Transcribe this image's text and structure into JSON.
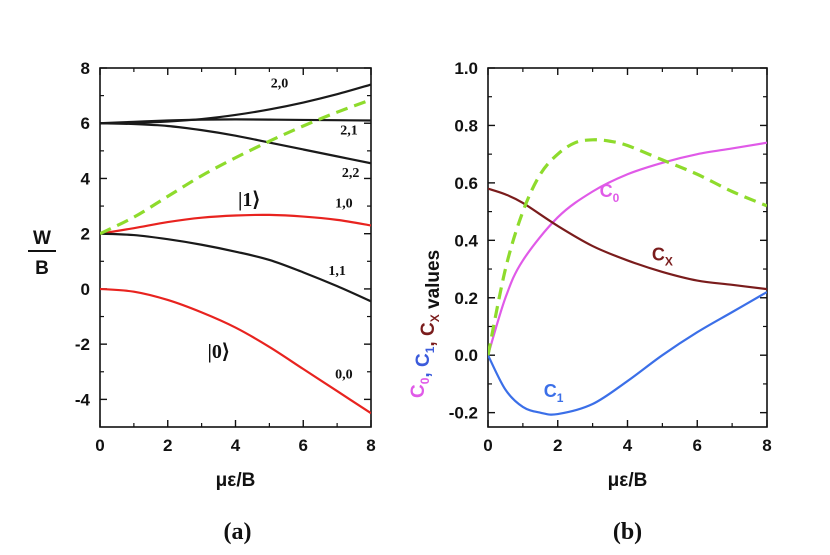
{
  "chart_data": [
    {
      "type": "line",
      "panel_label": "(a)",
      "xlabel": "με/B",
      "ylabel_num": "W",
      "ylabel_den": "B",
      "xlim": [
        0,
        8
      ],
      "ylim": [
        -5,
        8
      ],
      "x_ticks": [
        "0",
        "2",
        "4",
        "6",
        "8"
      ],
      "y_ticks": [
        "8",
        "6",
        "4",
        "2",
        "0",
        "-2",
        "-4"
      ],
      "colors": {
        "black": "#1a1a1a",
        "red": "#e8231f",
        "green": "#8edb2c"
      },
      "annotations": {
        "ket1": "|1⟩",
        "ket0": "|0⟩"
      },
      "series": [
        {
          "label": "2,0",
          "color": "black",
          "dash": false,
          "x": [
            0,
            1,
            2,
            3,
            4,
            5,
            6,
            7,
            8
          ],
          "y": [
            6.0,
            6.01,
            6.06,
            6.15,
            6.3,
            6.5,
            6.75,
            7.05,
            7.4
          ]
        },
        {
          "label": "2,1",
          "color": "black",
          "dash": false,
          "x": [
            0,
            1,
            2,
            3,
            4,
            5,
            6,
            7,
            8
          ],
          "y": [
            6.0,
            6.05,
            6.1,
            6.13,
            6.14,
            6.13,
            6.12,
            6.11,
            6.1
          ]
        },
        {
          "label": "2,2",
          "color": "black",
          "dash": false,
          "x": [
            0,
            1,
            2,
            3,
            4,
            5,
            6,
            7,
            8
          ],
          "y": [
            6.0,
            5.97,
            5.9,
            5.75,
            5.55,
            5.3,
            5.05,
            4.8,
            4.55
          ]
        },
        {
          "label": "1,0",
          "color": "red",
          "dash": false,
          "x": [
            0,
            1,
            2,
            3,
            4,
            5,
            6,
            7,
            8
          ],
          "y": [
            2.0,
            2.2,
            2.42,
            2.58,
            2.66,
            2.68,
            2.62,
            2.5,
            2.3
          ]
        },
        {
          "label": "1,1",
          "color": "black",
          "dash": false,
          "x": [
            0,
            1,
            2,
            3,
            4,
            5,
            6,
            7,
            8
          ],
          "y": [
            2.0,
            1.95,
            1.8,
            1.6,
            1.35,
            1.05,
            0.6,
            0.1,
            -0.45
          ]
        },
        {
          "label": "0,0",
          "color": "red",
          "dash": false,
          "x": [
            0,
            1,
            2,
            3,
            4,
            5,
            6,
            7,
            8
          ],
          "y": [
            0.0,
            -0.1,
            -0.4,
            -0.85,
            -1.4,
            -2.1,
            -2.9,
            -3.7,
            -4.5
          ]
        },
        {
          "label": "",
          "color": "green",
          "dash": true,
          "x": [
            0,
            1,
            2,
            3,
            4,
            5,
            6,
            7,
            8
          ],
          "y": [
            2.0,
            2.6,
            3.35,
            4.1,
            4.75,
            5.35,
            5.9,
            6.4,
            6.85
          ]
        }
      ]
    },
    {
      "type": "line",
      "panel_label": "(b)",
      "xlabel": "με/B",
      "ylabel_parts": [
        {
          "text": "C",
          "sub": "0",
          "color": "#e05ae8"
        },
        {
          "text": ", ",
          "sub": "",
          "color": "#3b5bdb"
        },
        {
          "text": "C",
          "sub": "1",
          "color": "#3b5bdb"
        },
        {
          "text": ", ",
          "sub": "",
          "color": "#7a1c1c"
        },
        {
          "text": "C",
          "sub": "X",
          "color": "#7a1c1c"
        },
        {
          "text": " values",
          "sub": "",
          "color": "#111111"
        }
      ],
      "xlim": [
        0,
        8
      ],
      "ylim": [
        -0.25,
        1.0
      ],
      "x_ticks": [
        "0",
        "2",
        "4",
        "6",
        "8"
      ],
      "y_ticks": [
        "1.0",
        "0.8",
        "0.6",
        "0.4",
        "0.2",
        "0.0",
        "-0.2"
      ],
      "colors": {
        "C0": "#e05ae8",
        "C1": "#3b6fe8",
        "CX": "#7a1c1c",
        "dashed": "#8edb2c"
      },
      "series": [
        {
          "name": "C",
          "sub": "0",
          "color": "#e05ae8",
          "dash": false,
          "x": [
            0,
            0.5,
            1,
            2,
            3,
            4,
            5,
            6,
            7,
            8
          ],
          "y": [
            0.0,
            0.2,
            0.33,
            0.48,
            0.57,
            0.63,
            0.67,
            0.7,
            0.72,
            0.74
          ]
        },
        {
          "name": "C",
          "sub": "1",
          "color": "#3b6fe8",
          "dash": false,
          "x": [
            0,
            0.5,
            1,
            1.5,
            2,
            3,
            4,
            5,
            6,
            7,
            8
          ],
          "y": [
            0.0,
            -0.12,
            -0.18,
            -0.2,
            -0.205,
            -0.17,
            -0.09,
            0.0,
            0.08,
            0.15,
            0.22
          ]
        },
        {
          "name": "C",
          "sub": "X",
          "color": "#7a1c1c",
          "dash": false,
          "x": [
            0,
            0.5,
            1,
            2,
            3,
            4,
            5,
            6,
            7,
            8
          ],
          "y": [
            0.58,
            0.56,
            0.53,
            0.45,
            0.38,
            0.33,
            0.29,
            0.26,
            0.245,
            0.23
          ]
        },
        {
          "name": "",
          "sub": "",
          "color": "#8edb2c",
          "dash": true,
          "x": [
            0,
            0.5,
            1,
            1.5,
            2,
            2.5,
            3,
            3.5,
            4,
            5,
            6,
            7,
            8
          ],
          "y": [
            0.0,
            0.3,
            0.5,
            0.63,
            0.7,
            0.74,
            0.75,
            0.745,
            0.73,
            0.68,
            0.63,
            0.57,
            0.52
          ]
        }
      ]
    }
  ]
}
